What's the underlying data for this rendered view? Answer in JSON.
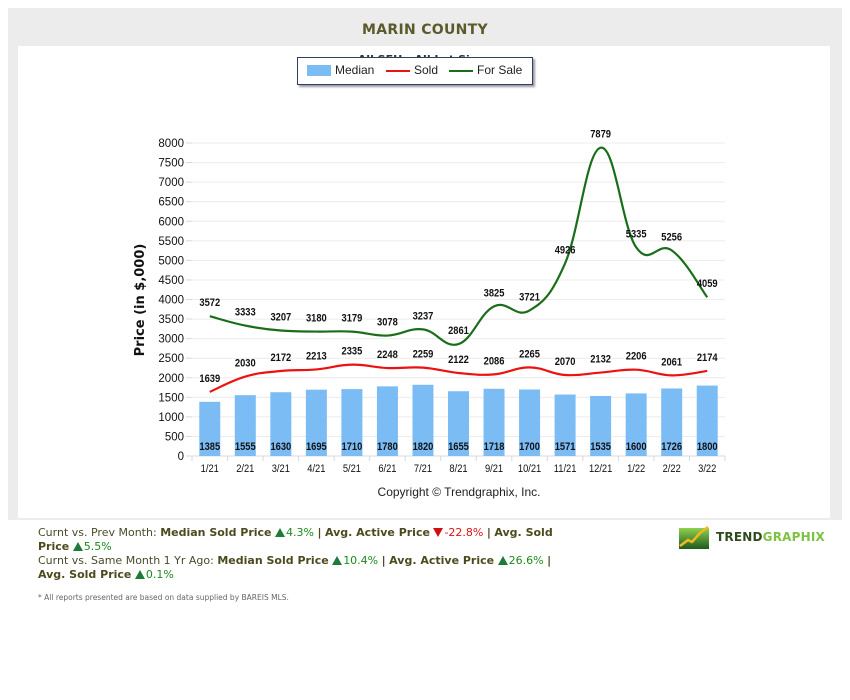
{
  "header": {
    "title": "MARIN COUNTY",
    "subtitle": "All SFH - All Lot Sizes"
  },
  "colors": {
    "median": "#7cbcf4",
    "sold": "#ee1111",
    "for_sale": "#1a6e1a",
    "title": "#5c5a2a"
  },
  "chart_data": {
    "type": "bar",
    "title": "MARIN COUNTY",
    "subtitle": "All SFH - All Lot Sizes",
    "xlabel": "",
    "ylabel": "Price (in $,000)",
    "ylim": [
      0,
      8000
    ],
    "yticks": [
      0,
      500,
      1000,
      1500,
      2000,
      2500,
      3000,
      3500,
      4000,
      4500,
      5000,
      5500,
      6000,
      6500,
      7000,
      7500,
      8000
    ],
    "grid": true,
    "legend": "top-center",
    "categories": [
      "1/21",
      "2/21",
      "3/21",
      "4/21",
      "5/21",
      "6/21",
      "7/21",
      "8/21",
      "9/21",
      "10/21",
      "11/21",
      "12/21",
      "1/22",
      "2/22",
      "3/22"
    ],
    "series": [
      {
        "name": "Median",
        "type": "bar",
        "values": [
          1385,
          1555,
          1630,
          1695,
          1710,
          1780,
          1820,
          1655,
          1718,
          1700,
          1571,
          1535,
          1600,
          1726,
          1800
        ]
      },
      {
        "name": "Sold",
        "type": "line",
        "values": [
          1639,
          2030,
          2172,
          2213,
          2335,
          2248,
          2259,
          2122,
          2086,
          2265,
          2070,
          2132,
          2206,
          2061,
          2174
        ]
      },
      {
        "name": "For Sale",
        "type": "line",
        "values": [
          3572,
          3333,
          3207,
          3180,
          3179,
          3078,
          3237,
          2861,
          3825,
          3721,
          4926,
          7879,
          5335,
          5256,
          4059
        ]
      }
    ],
    "copyright": "Copyright © Trendgraphix, Inc."
  },
  "stats": {
    "prev_month": {
      "label": "Curnt vs. Prev Month:",
      "items": [
        {
          "name": "Median Sold Price",
          "direction": "up",
          "value": "4.3%"
        },
        {
          "name": "Avg. Active Price",
          "direction": "down",
          "value": "-22.8%"
        },
        {
          "name": "Avg. Sold Price",
          "direction": "up",
          "value": "5.5%"
        }
      ]
    },
    "year_ago": {
      "label": "Curnt vs. Same Month 1 Yr Ago:",
      "items": [
        {
          "name": "Median Sold Price",
          "direction": "up",
          "value": "10.4%"
        },
        {
          "name": "Avg. Active Price",
          "direction": "up",
          "value": "26.6%"
        },
        {
          "name": "Avg. Sold Price",
          "direction": "up",
          "value": "0.1%"
        }
      ]
    },
    "separator": "|"
  },
  "logo": {
    "text_a": "TREND",
    "text_b": "GRAPHIX"
  },
  "footnote": "* All reports presented are based on data supplied by BAREIS MLS."
}
